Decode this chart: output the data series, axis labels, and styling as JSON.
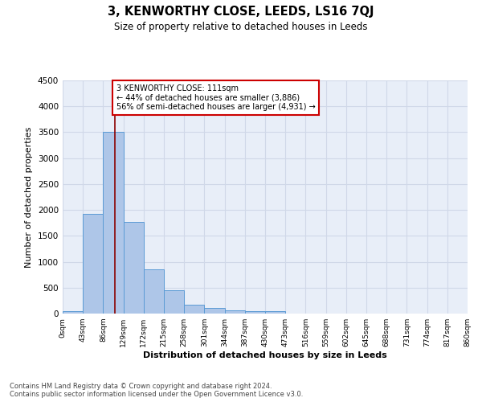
{
  "title": "3, KENWORTHY CLOSE, LEEDS, LS16 7QJ",
  "subtitle": "Size of property relative to detached houses in Leeds",
  "xlabel": "Distribution of detached houses by size in Leeds",
  "ylabel": "Number of detached properties",
  "bin_labels": [
    "0sqm",
    "43sqm",
    "86sqm",
    "129sqm",
    "172sqm",
    "215sqm",
    "258sqm",
    "301sqm",
    "344sqm",
    "387sqm",
    "430sqm",
    "473sqm",
    "516sqm",
    "559sqm",
    "602sqm",
    "645sqm",
    "688sqm",
    "731sqm",
    "774sqm",
    "817sqm",
    "860sqm"
  ],
  "bar_heights": [
    50,
    1930,
    3500,
    1770,
    850,
    450,
    175,
    105,
    65,
    50,
    50,
    0,
    0,
    0,
    0,
    0,
    0,
    0,
    0,
    0
  ],
  "bar_color": "#aec6e8",
  "bar_edge_color": "#5b9bd5",
  "grid_color": "#d0d8e8",
  "background_color": "#e8eef8",
  "property_line_x": 111,
  "property_line_color": "#8b0000",
  "annotation_text": "3 KENWORTHY CLOSE: 111sqm\n← 44% of detached houses are smaller (3,886)\n56% of semi-detached houses are larger (4,931) →",
  "annotation_box_color": "white",
  "annotation_box_edge_color": "#cc0000",
  "footer_text": "Contains HM Land Registry data © Crown copyright and database right 2024.\nContains public sector information licensed under the Open Government Licence v3.0.",
  "ylim": [
    0,
    4500
  ],
  "bin_edges": [
    0,
    43,
    86,
    129,
    172,
    215,
    258,
    301,
    344,
    387,
    430,
    473,
    516,
    559,
    602,
    645,
    688,
    731,
    774,
    817,
    860
  ]
}
